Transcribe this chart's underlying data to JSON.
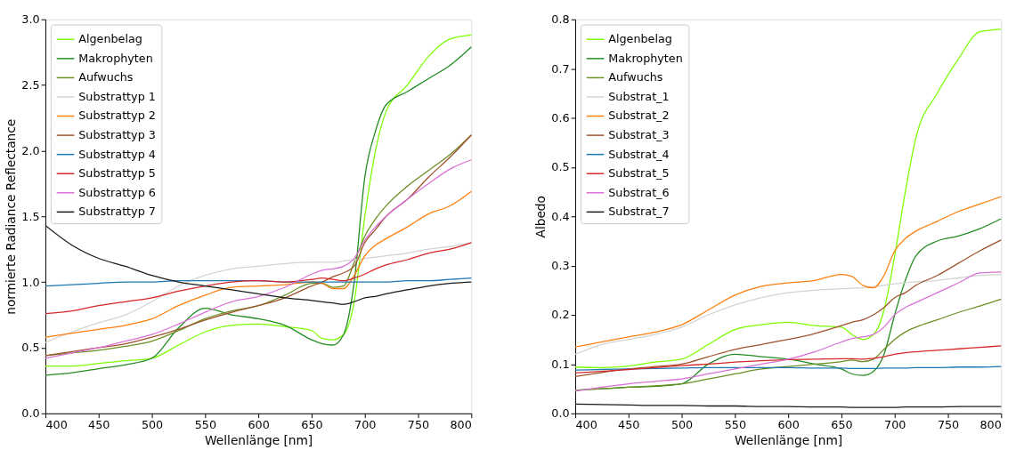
{
  "chart_data": [
    {
      "type": "line",
      "xlabel": "Wellenlänge [nm]",
      "ylabel": "normierte Radiance Reflectance",
      "xlim": [
        400,
        800
      ],
      "ylim": [
        0,
        3.0
      ],
      "xticks": [
        400,
        450,
        500,
        550,
        600,
        650,
        700,
        750,
        800
      ],
      "yticks": [
        {
          "value": 0,
          "label": "0.0"
        },
        {
          "value": 0.5,
          "label": "0.5"
        },
        {
          "value": 1.0,
          "label": "1.0"
        },
        {
          "value": 1.5,
          "label": "1.5"
        },
        {
          "value": 2.0,
          "label": "2.0"
        },
        {
          "value": 2.5,
          "label": "2.5"
        },
        {
          "value": 3.0,
          "label": "3.0"
        }
      ],
      "grid": false,
      "legend": "top left",
      "line_style": "solid",
      "marker": "none",
      "x": [
        400,
        425,
        450,
        475,
        500,
        525,
        550,
        575,
        600,
        625,
        650,
        660,
        670,
        680,
        690,
        700,
        710,
        720,
        740,
        760,
        780,
        800
      ],
      "series": [
        {
          "name": "Algenbelag",
          "color": "#7cfc00",
          "values": [
            0.36,
            0.36,
            0.38,
            0.4,
            0.42,
            0.52,
            0.62,
            0.67,
            0.68,
            0.66,
            0.63,
            0.57,
            0.56,
            0.6,
            0.85,
            1.5,
            2.0,
            2.3,
            2.5,
            2.72,
            2.85,
            2.88
          ]
        },
        {
          "name": "Makrophyten",
          "color": "#228b22",
          "values": [
            0.29,
            0.31,
            0.34,
            0.37,
            0.42,
            0.65,
            0.8,
            0.75,
            0.72,
            0.67,
            0.56,
            0.53,
            0.52,
            0.6,
            1.0,
            1.8,
            2.15,
            2.35,
            2.45,
            2.55,
            2.65,
            2.79
          ]
        },
        {
          "name": "Aufwuchs",
          "color": "#6b8e23",
          "values": [
            0.44,
            0.46,
            0.48,
            0.51,
            0.55,
            0.63,
            0.72,
            0.78,
            0.82,
            0.9,
            0.99,
            0.99,
            0.96,
            0.97,
            1.15,
            1.35,
            1.48,
            1.58,
            1.73,
            1.85,
            1.97,
            2.12
          ]
        },
        {
          "name": "Substrattyp 1",
          "color": "#d3d3d3",
          "values": [
            0.54,
            0.62,
            0.69,
            0.75,
            0.85,
            0.97,
            1.05,
            1.1,
            1.12,
            1.14,
            1.15,
            1.15,
            1.15,
            1.16,
            1.17,
            1.18,
            1.19,
            1.2,
            1.22,
            1.25,
            1.27,
            1.3
          ]
        },
        {
          "name": "Substrattyp 2",
          "color": "#ff7f0e",
          "values": [
            0.58,
            0.61,
            0.64,
            0.67,
            0.72,
            0.82,
            0.9,
            0.96,
            0.97,
            0.98,
            1.0,
            0.99,
            0.95,
            0.95,
            1.05,
            1.2,
            1.28,
            1.33,
            1.42,
            1.52,
            1.58,
            1.69
          ]
        },
        {
          "name": "Substrattyp 3",
          "color": "#a0522d",
          "values": [
            0.44,
            0.47,
            0.5,
            0.53,
            0.58,
            0.64,
            0.71,
            0.77,
            0.82,
            0.88,
            0.97,
            1.0,
            1.04,
            1.07,
            1.12,
            1.3,
            1.4,
            1.5,
            1.63,
            1.8,
            1.95,
            2.12
          ]
        },
        {
          "name": "Substrattyp 4",
          "color": "#1f77b4",
          "values": [
            0.97,
            0.98,
            0.99,
            1.0,
            1.0,
            1.01,
            1.01,
            1.01,
            1.01,
            1.0,
            1.0,
            1.0,
            1.0,
            1.0,
            1.0,
            1.0,
            1.0,
            1.0,
            1.01,
            1.01,
            1.02,
            1.03
          ]
        },
        {
          "name": "Substrattyp 5",
          "color": "#d62728",
          "values": [
            0.76,
            0.78,
            0.82,
            0.85,
            0.88,
            0.93,
            0.97,
            1.0,
            1.01,
            1.0,
            1.02,
            1.03,
            1.02,
            1.01,
            1.03,
            1.06,
            1.1,
            1.13,
            1.17,
            1.22,
            1.25,
            1.3
          ]
        },
        {
          "name": "Substrattyp 6",
          "color": "#da70d6",
          "values": [
            0.42,
            0.46,
            0.5,
            0.55,
            0.6,
            0.68,
            0.77,
            0.85,
            0.89,
            0.96,
            1.06,
            1.09,
            1.1,
            1.12,
            1.18,
            1.32,
            1.42,
            1.5,
            1.63,
            1.75,
            1.86,
            1.93
          ]
        },
        {
          "name": "Substrattyp 7",
          "color": "#1a1a1a",
          "values": [
            1.43,
            1.28,
            1.18,
            1.12,
            1.05,
            1.0,
            0.97,
            0.94,
            0.91,
            0.88,
            0.86,
            0.85,
            0.84,
            0.83,
            0.85,
            0.88,
            0.89,
            0.91,
            0.94,
            0.97,
            0.99,
            1.0
          ]
        }
      ]
    },
    {
      "type": "line",
      "xlabel": "Wellenlänge [nm]",
      "ylabel": "Albedo",
      "xlim": [
        400,
        800
      ],
      "ylim": [
        0,
        0.8
      ],
      "xticks": [
        400,
        450,
        500,
        550,
        600,
        650,
        700,
        750,
        800
      ],
      "yticks": [
        {
          "value": 0,
          "label": "0.0"
        },
        0.1,
        0.2,
        0.3,
        0.4,
        0.5,
        0.6,
        0.7,
        0.8
      ],
      "grid": false,
      "legend": "top left",
      "line_style": "solid",
      "marker": "none",
      "x": [
        400,
        425,
        450,
        475,
        500,
        525,
        550,
        575,
        600,
        625,
        650,
        660,
        670,
        680,
        690,
        700,
        710,
        720,
        740,
        760,
        780,
        800
      ],
      "series": [
        {
          "name": "Algenbelag",
          "color": "#7cfc00",
          "values": [
            0.094,
            0.093,
            0.096,
            0.104,
            0.11,
            0.14,
            0.17,
            0.18,
            0.185,
            0.178,
            0.175,
            0.16,
            0.15,
            0.16,
            0.21,
            0.32,
            0.45,
            0.56,
            0.65,
            0.72,
            0.775,
            0.78
          ]
        },
        {
          "name": "Makrophyten",
          "color": "#228b22",
          "values": [
            0.047,
            0.05,
            0.053,
            0.055,
            0.06,
            0.1,
            0.12,
            0.115,
            0.11,
            0.1,
            0.09,
            0.08,
            0.077,
            0.085,
            0.12,
            0.2,
            0.27,
            0.32,
            0.35,
            0.36,
            0.375,
            0.395
          ]
        },
        {
          "name": "Aufwuchs",
          "color": "#6b8e23",
          "values": [
            0.047,
            0.05,
            0.053,
            0.056,
            0.06,
            0.07,
            0.08,
            0.09,
            0.095,
            0.1,
            0.105,
            0.108,
            0.105,
            0.11,
            0.13,
            0.15,
            0.165,
            0.175,
            0.19,
            0.205,
            0.218,
            0.232
          ]
        },
        {
          "name": "Substrat_1",
          "color": "#d3d3d3",
          "values": [
            0.12,
            0.14,
            0.15,
            0.16,
            0.175,
            0.2,
            0.22,
            0.235,
            0.245,
            0.25,
            0.253,
            0.254,
            0.255,
            0.257,
            0.26,
            0.263,
            0.265,
            0.267,
            0.27,
            0.275,
            0.28,
            0.282
          ]
        },
        {
          "name": "Substrat_2",
          "color": "#ff7f0e",
          "values": [
            0.135,
            0.145,
            0.155,
            0.165,
            0.18,
            0.21,
            0.24,
            0.258,
            0.265,
            0.27,
            0.282,
            0.278,
            0.26,
            0.255,
            0.28,
            0.33,
            0.355,
            0.37,
            0.39,
            0.41,
            0.425,
            0.44
          ]
        },
        {
          "name": "Substrat_3",
          "color": "#a0522d",
          "values": [
            0.075,
            0.083,
            0.09,
            0.095,
            0.1,
            0.115,
            0.13,
            0.14,
            0.15,
            0.162,
            0.178,
            0.185,
            0.19,
            0.2,
            0.215,
            0.235,
            0.245,
            0.26,
            0.28,
            0.305,
            0.33,
            0.352
          ]
        },
        {
          "name": "Substrat_4",
          "color": "#1f77b4",
          "values": [
            0.088,
            0.089,
            0.09,
            0.091,
            0.092,
            0.093,
            0.093,
            0.093,
            0.093,
            0.092,
            0.092,
            0.091,
            0.091,
            0.091,
            0.092,
            0.092,
            0.092,
            0.093,
            0.093,
            0.094,
            0.094,
            0.095
          ]
        },
        {
          "name": "Substrat_5",
          "color": "#d62728",
          "values": [
            0.082,
            0.085,
            0.089,
            0.093,
            0.097,
            0.1,
            0.104,
            0.107,
            0.109,
            0.11,
            0.111,
            0.111,
            0.11,
            0.112,
            0.115,
            0.12,
            0.123,
            0.125,
            0.128,
            0.131,
            0.134,
            0.137
          ]
        },
        {
          "name": "Substrat_6",
          "color": "#da70d6",
          "values": [
            0.045,
            0.053,
            0.06,
            0.065,
            0.07,
            0.08,
            0.09,
            0.1,
            0.11,
            0.125,
            0.145,
            0.152,
            0.155,
            0.16,
            0.175,
            0.2,
            0.215,
            0.225,
            0.245,
            0.265,
            0.285,
            0.287
          ]
        },
        {
          "name": "Substrat_7",
          "color": "#1a1a1a",
          "values": [
            0.019,
            0.018,
            0.017,
            0.016,
            0.016,
            0.015,
            0.015,
            0.014,
            0.014,
            0.013,
            0.013,
            0.012,
            0.012,
            0.012,
            0.012,
            0.012,
            0.013,
            0.013,
            0.013,
            0.014,
            0.014,
            0.014
          ]
        }
      ]
    }
  ]
}
